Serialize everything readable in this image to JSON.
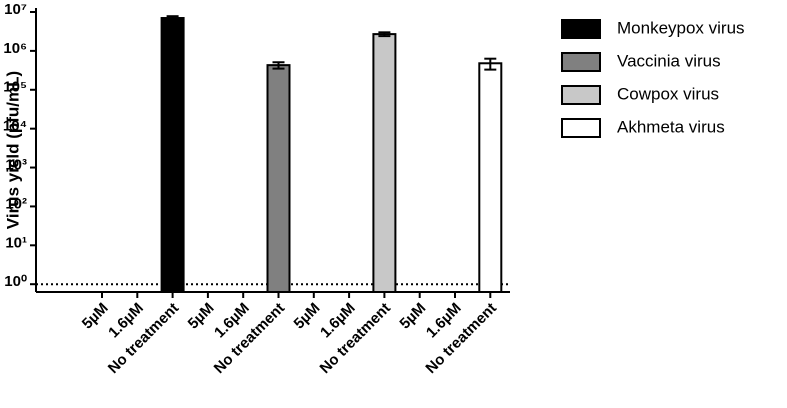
{
  "chart_data": {
    "type": "bar",
    "y_label": "Virus yield (pfu/mL)",
    "log_scale": true,
    "categories": [
      "5µM",
      "1.6µM",
      "No treatment",
      "5µM",
      "1.6µM",
      "No treatment",
      "5µM",
      "1.6µM",
      "No treatment",
      "5µM",
      "1.6µM",
      "No treatment"
    ],
    "series": [
      {
        "name": "Monkeypox virus",
        "color": "#000000",
        "values": [
          null,
          null,
          7000000,
          null,
          null,
          null,
          null,
          null,
          null,
          null,
          null,
          null
        ],
        "errors": [
          null,
          null,
          800000,
          null,
          null,
          null,
          null,
          null,
          null,
          null,
          null,
          null
        ]
      },
      {
        "name": "Vaccinia virus",
        "color": "#808080",
        "values": [
          null,
          null,
          null,
          null,
          null,
          430000,
          null,
          null,
          null,
          null,
          null,
          null
        ],
        "errors": [
          null,
          null,
          null,
          null,
          null,
          80000,
          null,
          null,
          null,
          null,
          null,
          null
        ]
      },
      {
        "name": "Cowpox virus",
        "color": "#c8c8c8",
        "values": [
          null,
          null,
          null,
          null,
          null,
          null,
          null,
          null,
          2700000,
          null,
          null,
          null
        ],
        "errors": [
          null,
          null,
          null,
          null,
          null,
          null,
          null,
          null,
          300000,
          null,
          null,
          null
        ]
      },
      {
        "name": "Akhmeta virus",
        "color": "#ffffff",
        "values": [
          null,
          null,
          null,
          null,
          null,
          null,
          null,
          null,
          null,
          null,
          null,
          480000
        ],
        "errors": [
          null,
          null,
          null,
          null,
          null,
          null,
          null,
          null,
          null,
          null,
          null,
          150000
        ]
      }
    ],
    "reference_line": 1,
    "ylim": [
      0.63,
      10000000
    ],
    "yticks": [
      {
        "value": 1,
        "label": "10⁰"
      },
      {
        "value": 10,
        "label": "10¹"
      },
      {
        "value": 100,
        "label": "10²"
      },
      {
        "value": 1000,
        "label": "10³"
      },
      {
        "value": 10000,
        "label": "10⁴"
      },
      {
        "value": 100000,
        "label": "10⁵"
      },
      {
        "value": 1000000,
        "label": "10⁶"
      },
      {
        "value": 10000000,
        "label": "10⁷"
      }
    ],
    "legend": "right"
  }
}
